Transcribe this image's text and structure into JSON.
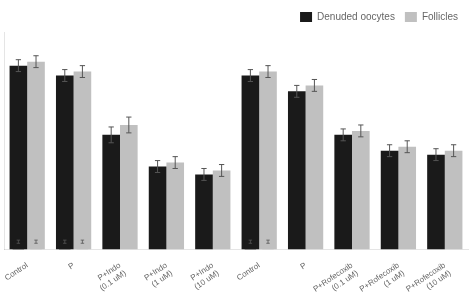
{
  "chart_data": {
    "type": "bar",
    "categories": [
      "Control",
      "P",
      "P+Indo\n(0.1 uM)",
      "P+Indo\n(1 uM)",
      "P+Indo\n(10 uM)",
      "Control",
      "P",
      "P+Rofecoxib\n(0.1 uM)",
      "P+Rofecoxib\n(1 uM)",
      "P+Rofecoxib\n(10 uM)"
    ],
    "series": [
      {
        "name": "Denuded oocytes",
        "color": "#1a1a1a",
        "values": [
          93,
          88,
          58,
          42,
          38,
          88,
          80,
          58,
          50,
          48
        ],
        "errors": [
          3,
          3,
          4,
          3,
          3,
          3,
          3,
          3,
          3,
          3
        ],
        "inner_values": [
          4,
          4,
          null,
          null,
          null,
          4,
          null,
          null,
          null,
          null
        ],
        "inner_errors": [
          0.8,
          0.8,
          null,
          null,
          null,
          0.8,
          null,
          null,
          null,
          null
        ]
      },
      {
        "name": "Follicles",
        "color": "#c0c0c0",
        "values": [
          95,
          90,
          63,
          44,
          40,
          90,
          83,
          60,
          52,
          50
        ],
        "errors": [
          3,
          3,
          4,
          3,
          3,
          3,
          3,
          3,
          3,
          3
        ],
        "inner_values": [
          4,
          4,
          null,
          null,
          null,
          4,
          null,
          null,
          null,
          null
        ],
        "inner_errors": [
          0.8,
          0.8,
          null,
          null,
          null,
          0.8,
          null,
          null,
          null,
          null
        ]
      }
    ],
    "ylim": [
      0,
      110
    ],
    "grid": false,
    "legend": "upper right",
    "tick_labels": "x"
  }
}
